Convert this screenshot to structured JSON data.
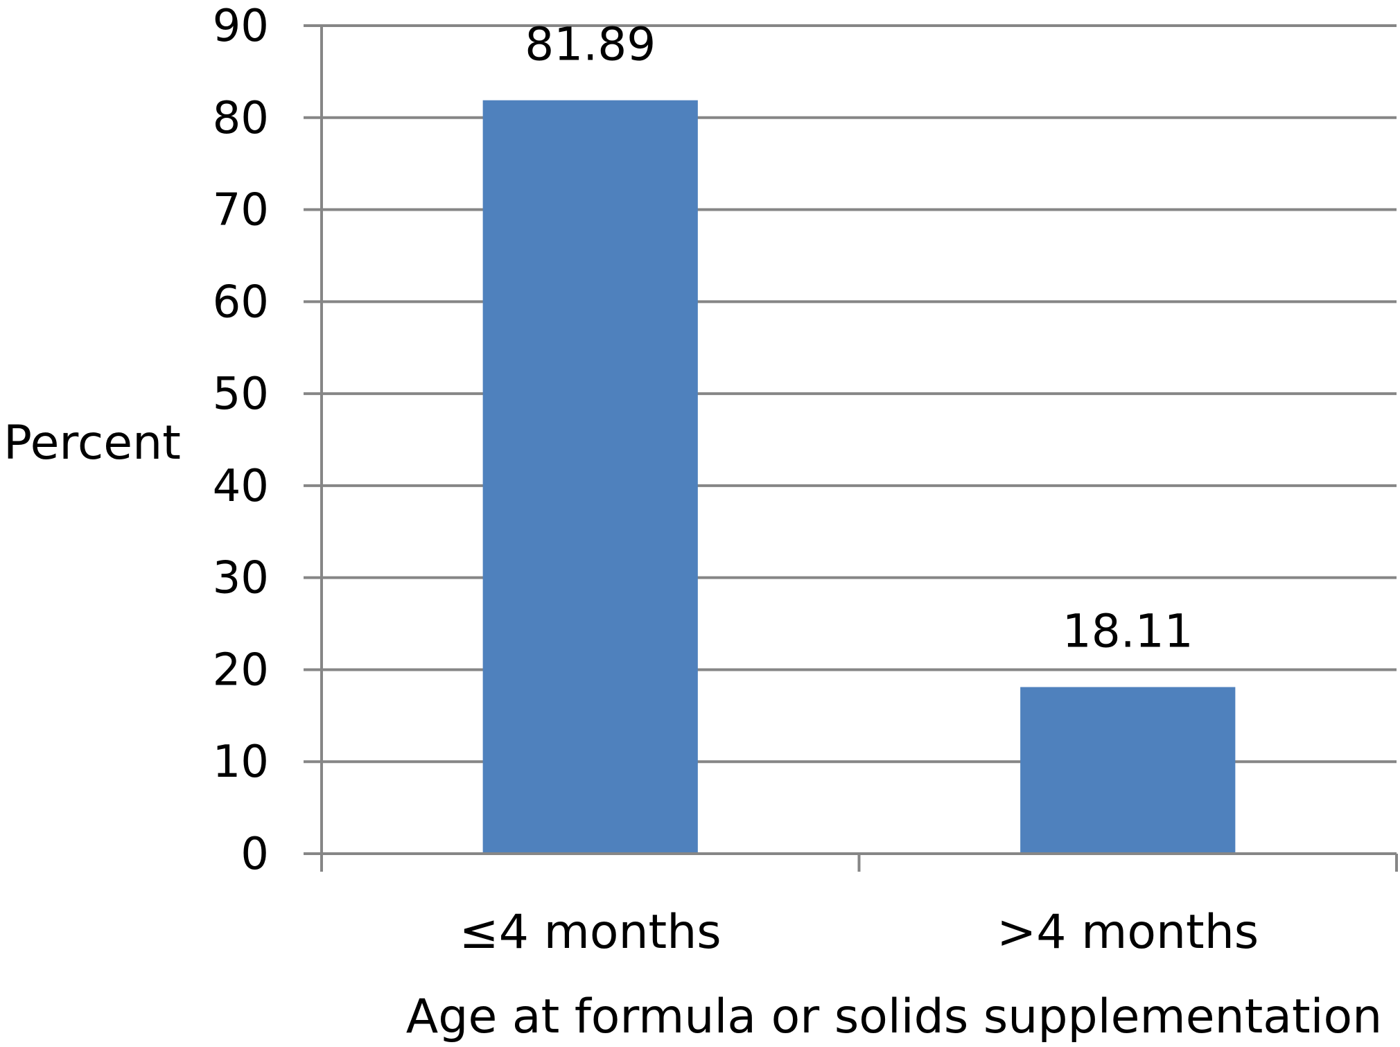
{
  "chart_data": {
    "type": "bar",
    "categories": [
      "≤4 months",
      ">4 months"
    ],
    "values": [
      81.89,
      18.11
    ],
    "data_labels": [
      "81.89",
      "18.11"
    ],
    "title": "",
    "xlabel": "Age at formula or solids supplementation",
    "ylabel": "Percent",
    "ylim": [
      0,
      90
    ],
    "yticks": [
      0,
      10,
      20,
      30,
      40,
      50,
      60,
      70,
      80,
      90
    ],
    "ytick_labels": [
      "0",
      "10",
      "20",
      "30",
      "40",
      "50",
      "60",
      "70",
      "80",
      "90"
    ],
    "grid": true,
    "legend": false,
    "colors": {
      "bar": "#4F81BD",
      "gridline": "#868686",
      "axis": "#868686",
      "text": "#000000"
    }
  }
}
